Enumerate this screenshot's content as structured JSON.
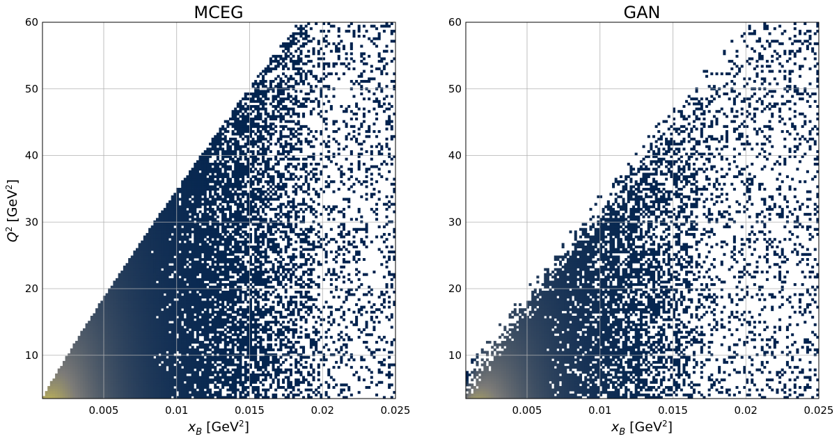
{
  "colors": {
    "colormap": "cividis",
    "low": "#00224e",
    "mid": "#7c7b78",
    "high": "#fee838",
    "grid": "#b0b0b0"
  },
  "chart_data": [
    {
      "type": "heatmap",
      "title": "MCEG",
      "xlabel_var": "x",
      "xlabel_sub": "B",
      "xlabel_unit": " [GeV",
      "xlabel_exp": "2",
      "xlabel_close": "]",
      "ylabel_var": "Q",
      "ylabel_exp": "2",
      "ylabel_unit": " [GeV",
      "ylabel_close": "]",
      "xlim": [
        0.0008,
        0.025
      ],
      "ylim": [
        3.5,
        60
      ],
      "xticks": [
        0.005,
        0.01,
        0.015,
        0.02,
        0.025
      ],
      "xtick_labels": [
        "0.005",
        "0.01",
        "0.015",
        "0.02",
        "0.025"
      ],
      "yticks": [
        10,
        20,
        30,
        40,
        50,
        60
      ],
      "ytick_labels": [
        "10",
        "20",
        "30",
        "40",
        "50",
        "60"
      ],
      "grid": true,
      "density_edge_k": 2200,
      "density_edge_exp": 0.9,
      "max_x": 0.025,
      "density_description_high_at_low_x": true
    },
    {
      "type": "heatmap",
      "title": "GAN",
      "xlabel_var": "x",
      "xlabel_sub": "B",
      "xlabel_unit": " [GeV",
      "xlabel_exp": "2",
      "xlabel_close": "]",
      "xlim": [
        0.0008,
        0.025
      ],
      "ylim": [
        3.5,
        60
      ],
      "xticks": [
        0.005,
        0.01,
        0.015,
        0.02,
        0.025
      ],
      "xtick_labels": [
        "0.005",
        "0.01",
        "0.015",
        "0.02",
        "0.025"
      ],
      "yticks": [
        10,
        20,
        30,
        40,
        50,
        60
      ],
      "ytick_labels": [
        "10",
        "20",
        "30",
        "40",
        "50",
        "60"
      ],
      "grid": true,
      "density_edge_k": 2600,
      "density_edge_exp": 0.98,
      "max_x": 0.025,
      "density_description_high_at_low_x": true
    }
  ]
}
